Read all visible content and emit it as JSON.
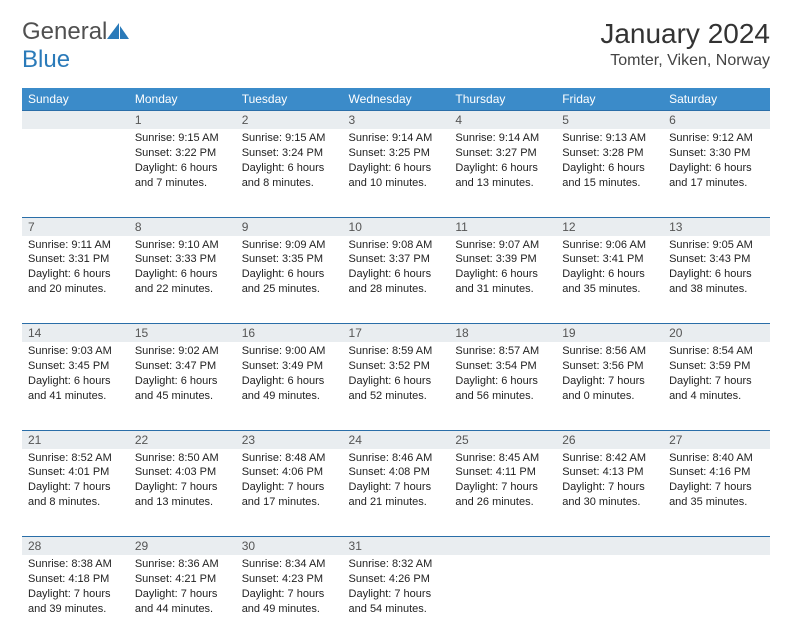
{
  "brand": {
    "name_part1": "General",
    "name_part2": "Blue"
  },
  "title": "January 2024",
  "location": "Tomter, Viken, Norway",
  "colors": {
    "header_bg": "#3b8bc9",
    "header_text": "#ffffff",
    "daynum_bg": "#e9edf0",
    "rule": "#2a6ea8",
    "brand_gray": "#505050",
    "brand_blue": "#2a7ab9"
  },
  "day_labels": [
    "Sunday",
    "Monday",
    "Tuesday",
    "Wednesday",
    "Thursday",
    "Friday",
    "Saturday"
  ],
  "weeks": [
    [
      null,
      {
        "n": "1",
        "sunrise": "9:15 AM",
        "sunset": "3:22 PM",
        "daylight": "6 hours and 7 minutes."
      },
      {
        "n": "2",
        "sunrise": "9:15 AM",
        "sunset": "3:24 PM",
        "daylight": "6 hours and 8 minutes."
      },
      {
        "n": "3",
        "sunrise": "9:14 AM",
        "sunset": "3:25 PM",
        "daylight": "6 hours and 10 minutes."
      },
      {
        "n": "4",
        "sunrise": "9:14 AM",
        "sunset": "3:27 PM",
        "daylight": "6 hours and 13 minutes."
      },
      {
        "n": "5",
        "sunrise": "9:13 AM",
        "sunset": "3:28 PM",
        "daylight": "6 hours and 15 minutes."
      },
      {
        "n": "6",
        "sunrise": "9:12 AM",
        "sunset": "3:30 PM",
        "daylight": "6 hours and 17 minutes."
      }
    ],
    [
      {
        "n": "7",
        "sunrise": "9:11 AM",
        "sunset": "3:31 PM",
        "daylight": "6 hours and 20 minutes."
      },
      {
        "n": "8",
        "sunrise": "9:10 AM",
        "sunset": "3:33 PM",
        "daylight": "6 hours and 22 minutes."
      },
      {
        "n": "9",
        "sunrise": "9:09 AM",
        "sunset": "3:35 PM",
        "daylight": "6 hours and 25 minutes."
      },
      {
        "n": "10",
        "sunrise": "9:08 AM",
        "sunset": "3:37 PM",
        "daylight": "6 hours and 28 minutes."
      },
      {
        "n": "11",
        "sunrise": "9:07 AM",
        "sunset": "3:39 PM",
        "daylight": "6 hours and 31 minutes."
      },
      {
        "n": "12",
        "sunrise": "9:06 AM",
        "sunset": "3:41 PM",
        "daylight": "6 hours and 35 minutes."
      },
      {
        "n": "13",
        "sunrise": "9:05 AM",
        "sunset": "3:43 PM",
        "daylight": "6 hours and 38 minutes."
      }
    ],
    [
      {
        "n": "14",
        "sunrise": "9:03 AM",
        "sunset": "3:45 PM",
        "daylight": "6 hours and 41 minutes."
      },
      {
        "n": "15",
        "sunrise": "9:02 AM",
        "sunset": "3:47 PM",
        "daylight": "6 hours and 45 minutes."
      },
      {
        "n": "16",
        "sunrise": "9:00 AM",
        "sunset": "3:49 PM",
        "daylight": "6 hours and 49 minutes."
      },
      {
        "n": "17",
        "sunrise": "8:59 AM",
        "sunset": "3:52 PM",
        "daylight": "6 hours and 52 minutes."
      },
      {
        "n": "18",
        "sunrise": "8:57 AM",
        "sunset": "3:54 PM",
        "daylight": "6 hours and 56 minutes."
      },
      {
        "n": "19",
        "sunrise": "8:56 AM",
        "sunset": "3:56 PM",
        "daylight": "7 hours and 0 minutes."
      },
      {
        "n": "20",
        "sunrise": "8:54 AM",
        "sunset": "3:59 PM",
        "daylight": "7 hours and 4 minutes."
      }
    ],
    [
      {
        "n": "21",
        "sunrise": "8:52 AM",
        "sunset": "4:01 PM",
        "daylight": "7 hours and 8 minutes."
      },
      {
        "n": "22",
        "sunrise": "8:50 AM",
        "sunset": "4:03 PM",
        "daylight": "7 hours and 13 minutes."
      },
      {
        "n": "23",
        "sunrise": "8:48 AM",
        "sunset": "4:06 PM",
        "daylight": "7 hours and 17 minutes."
      },
      {
        "n": "24",
        "sunrise": "8:46 AM",
        "sunset": "4:08 PM",
        "daylight": "7 hours and 21 minutes."
      },
      {
        "n": "25",
        "sunrise": "8:45 AM",
        "sunset": "4:11 PM",
        "daylight": "7 hours and 26 minutes."
      },
      {
        "n": "26",
        "sunrise": "8:42 AM",
        "sunset": "4:13 PM",
        "daylight": "7 hours and 30 minutes."
      },
      {
        "n": "27",
        "sunrise": "8:40 AM",
        "sunset": "4:16 PM",
        "daylight": "7 hours and 35 minutes."
      }
    ],
    [
      {
        "n": "28",
        "sunrise": "8:38 AM",
        "sunset": "4:18 PM",
        "daylight": "7 hours and 39 minutes."
      },
      {
        "n": "29",
        "sunrise": "8:36 AM",
        "sunset": "4:21 PM",
        "daylight": "7 hours and 44 minutes."
      },
      {
        "n": "30",
        "sunrise": "8:34 AM",
        "sunset": "4:23 PM",
        "daylight": "7 hours and 49 minutes."
      },
      {
        "n": "31",
        "sunrise": "8:32 AM",
        "sunset": "4:26 PM",
        "daylight": "7 hours and 54 minutes."
      },
      null,
      null,
      null
    ]
  ],
  "labels": {
    "sunrise_prefix": "Sunrise: ",
    "sunset_prefix": "Sunset: ",
    "daylight_prefix": "Daylight: "
  }
}
